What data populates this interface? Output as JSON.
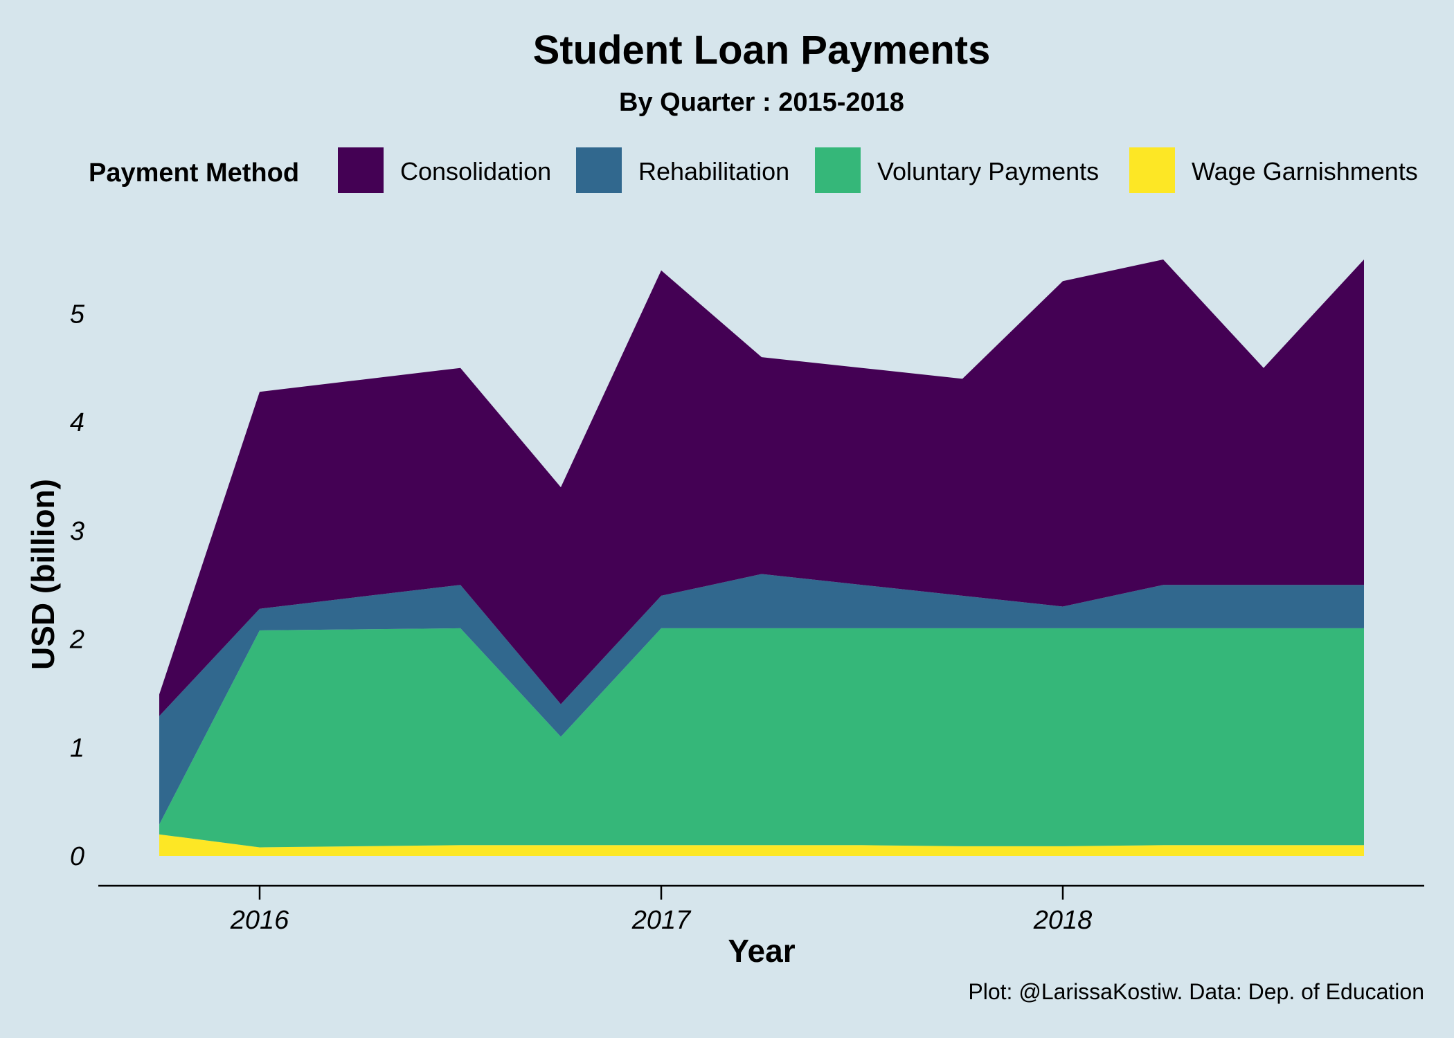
{
  "chart_data": {
    "type": "area",
    "stacked": true,
    "title": "Student Loan Payments",
    "subtitle": "By Quarter : 2015-2018",
    "xlabel": "Year",
    "ylabel": "USD (billion)",
    "caption": "Plot: @LarissaKostiw. Data: Dep. of Education",
    "legend_title": "Payment Method",
    "legend_position": "top",
    "grid": false,
    "xlim": [
      2015.75,
      2018.75
    ],
    "ylim": [
      0,
      5.5
    ],
    "x_ticks": [
      2016,
      2017,
      2018
    ],
    "x_tick_labels": [
      "2016",
      "2017",
      "2018"
    ],
    "y_ticks": [
      0,
      1,
      2,
      3,
      4,
      5
    ],
    "y_tick_labels": [
      "0",
      "1",
      "2",
      "3",
      "4",
      "5"
    ],
    "x": [
      2015.75,
      2016.0,
      2016.25,
      2016.5,
      2016.75,
      2017.0,
      2017.25,
      2017.5,
      2017.75,
      2018.0,
      2018.25,
      2018.5,
      2018.75
    ],
    "series": [
      {
        "name": "Wage Garnishments",
        "color": "#fde725",
        "values": [
          0.2,
          0.08,
          0.09,
          0.1,
          0.1,
          0.1,
          0.1,
          0.1,
          0.09,
          0.09,
          0.1,
          0.1,
          0.1
        ]
      },
      {
        "name": "Voluntary Payments",
        "color": "#35b779",
        "values": [
          0.09,
          2.0,
          2.0,
          2.0,
          1.0,
          2.0,
          2.0,
          2.0,
          2.01,
          2.01,
          2.0,
          2.0,
          2.0
        ]
      },
      {
        "name": "Rehabilitation",
        "color": "#31688e",
        "values": [
          1.0,
          0.2,
          0.3,
          0.4,
          0.3,
          0.3,
          0.5,
          0.4,
          0.3,
          0.2,
          0.4,
          0.4,
          0.4
        ]
      },
      {
        "name": "Consolidation",
        "color": "#440154",
        "values": [
          0.2,
          2.0,
          2.0,
          2.0,
          2.0,
          3.0,
          2.0,
          2.0,
          2.0,
          3.0,
          3.0,
          2.0,
          3.0
        ]
      }
    ],
    "legend_order": [
      "Consolidation",
      "Rehabilitation",
      "Voluntary Payments",
      "Wage Garnishments"
    ]
  }
}
